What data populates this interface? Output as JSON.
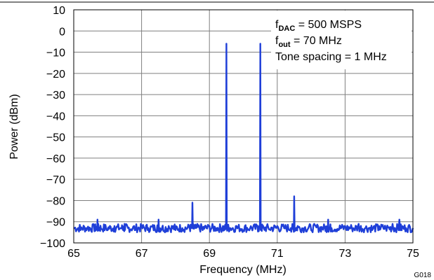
{
  "chart_data": {
    "type": "line",
    "xlabel": "Frequency (MHz)",
    "ylabel": "Power (dBm)",
    "xlim": [
      65,
      75
    ],
    "ylim": [
      -100,
      10
    ],
    "x_ticks": [
      "65",
      "67",
      "69",
      "71",
      "73",
      "75"
    ],
    "y_ticks": [
      "10",
      "0",
      "−10",
      "−20",
      "−30",
      "−40",
      "−50",
      "−60",
      "−70",
      "−80",
      "−90",
      "−100"
    ],
    "grid": true,
    "noise_floor_dBm": -93,
    "spectrum_x": [
      65.0,
      65.2,
      65.4,
      65.6,
      65.7,
      65.8,
      66.0,
      66.2,
      66.4,
      66.5,
      66.6,
      66.8,
      67.0,
      67.2,
      67.4,
      67.5,
      67.6,
      67.8,
      68.0,
      68.2,
      68.4,
      68.5,
      68.6,
      68.8,
      69.0,
      69.2,
      69.4,
      69.5,
      69.6,
      69.8,
      70.0,
      70.2,
      70.4,
      70.5,
      70.6,
      70.8,
      71.0,
      71.2,
      71.4,
      71.5,
      71.6,
      71.8,
      72.0,
      72.2,
      72.4,
      72.5,
      72.6,
      72.8,
      73.0,
      73.2,
      73.4,
      73.6,
      73.8,
      74.0,
      74.2,
      74.4,
      74.6,
      74.8,
      75.0
    ],
    "spectrum_y": [
      -93,
      -94,
      -93,
      -92,
      -89,
      -93,
      -94,
      -92,
      -93,
      -91,
      -93,
      -94,
      -92,
      -93,
      -94,
      -89,
      -93,
      -92,
      -94,
      -93,
      -92,
      -81,
      -93,
      -94,
      -92,
      -93,
      -92,
      -6,
      -93,
      -92,
      -94,
      -93,
      -92,
      -6,
      -93,
      -94,
      -92,
      -93,
      -93,
      -78,
      -92,
      -93,
      -94,
      -92,
      -93,
      -89,
      -93,
      -94,
      -92,
      -93,
      -91,
      -93,
      -94,
      -92,
      -93,
      -91,
      -89,
      -93,
      -93
    ],
    "annotations": [
      {
        "main": "f",
        "sub": "DAC",
        "rest": " = 500 MSPS"
      },
      {
        "main": "f",
        "sub": "out",
        "rest": " = 70 MHz"
      },
      {
        "main": "Tone spacing  = 1 MHz",
        "sub": "",
        "rest": ""
      }
    ],
    "figure_code": "G018",
    "line_color": "#1f3fd8"
  }
}
